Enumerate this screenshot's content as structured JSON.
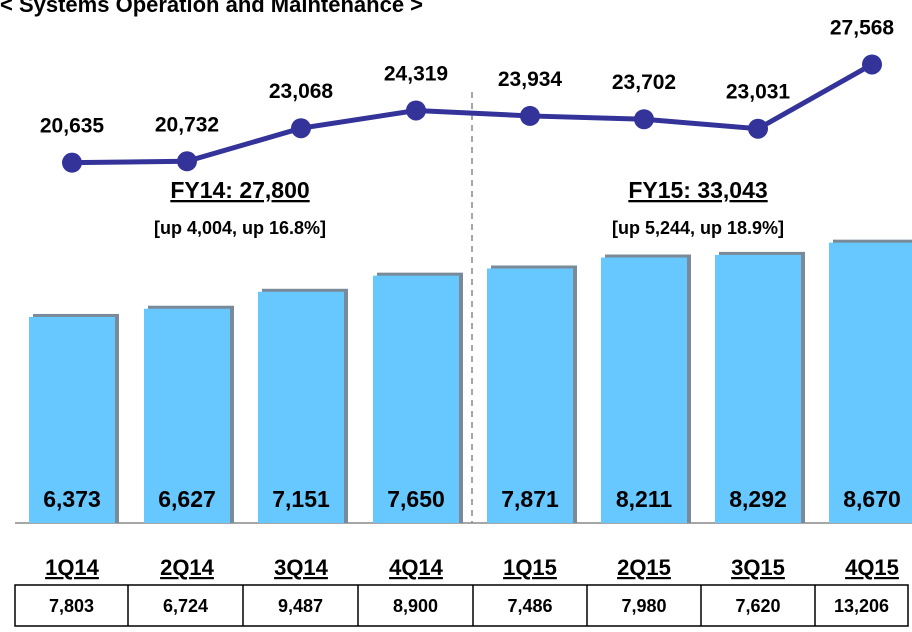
{
  "chart_data": {
    "type": "combo",
    "title": "< Systems Operation and Maintenance >",
    "categories": [
      "1Q14",
      "2Q14",
      "3Q14",
      "4Q14",
      "1Q15",
      "2Q15",
      "3Q15",
      "4Q15"
    ],
    "series": [
      {
        "color": "#66c8ff",
        "values": [
          6373,
          6627,
          7151,
          7650,
          7871,
          8211,
          8292,
          8670
        ],
        "value_labels": [
          "6,373",
          "6,627",
          "7,151",
          "7,650",
          "7,871",
          "8,211",
          "8,292",
          "8,670"
        ]
      },
      {
        "color": "#333399",
        "axis": "y2",
        "values": [
          20635,
          20732,
          23068,
          24319,
          23934,
          23702,
          23031,
          27568
        ],
        "value_labels": [
          "20,635",
          "20,732",
          "23,068",
          "24,319",
          "23,934",
          "23,702",
          "23,031",
          "27,568"
        ]
      }
    ],
    "ylim": [
      0,
      9000
    ],
    "y2lim": [
      18000,
      30000
    ],
    "annotations": [
      {
        "title": "FY14: 27,800",
        "text": "[up 4,004, up 16.8%]"
      },
      {
        "title": "FY15: 33,043",
        "text": "[up 5,244, up 18.9%]"
      }
    ],
    "table": [
      "7,803",
      "6,724",
      "9,487",
      "8,900",
      "7,486",
      "7,980",
      "7,620",
      "13,206"
    ]
  }
}
